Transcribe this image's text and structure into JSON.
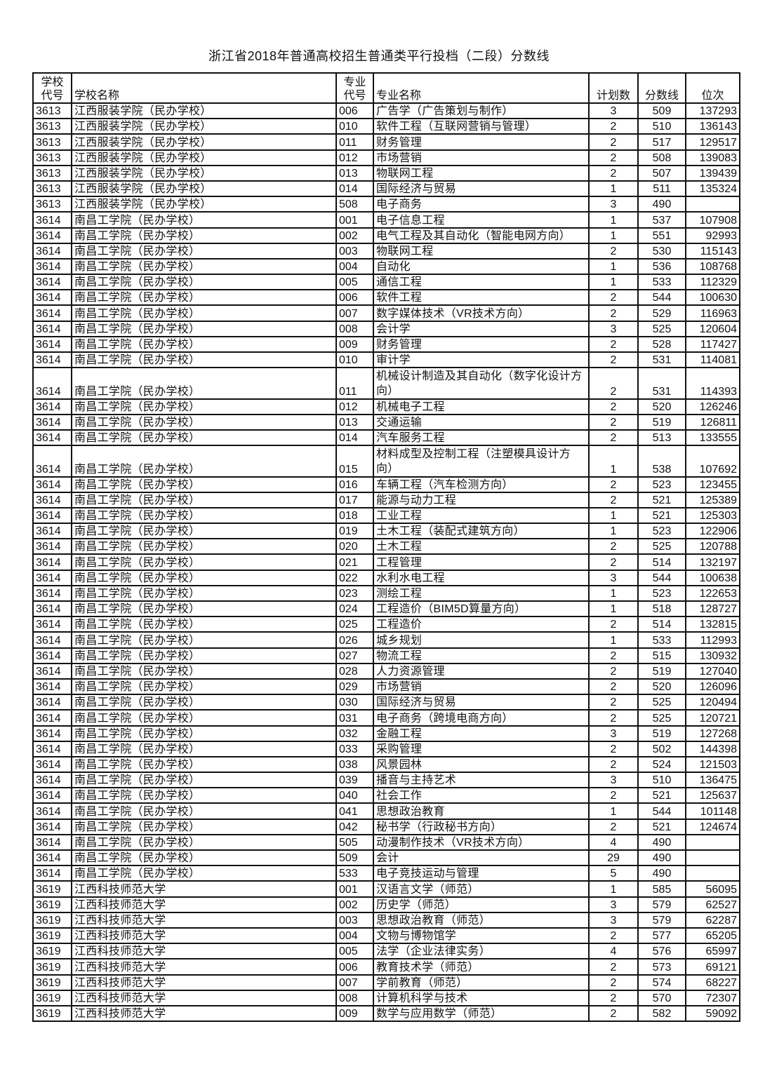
{
  "title": "浙江省2018年普通高校招生普通类平行投档（二段）分数线",
  "headers": {
    "school_code": [
      "学校",
      "代号"
    ],
    "school_name": "学校名称",
    "major_code": [
      "专业",
      "代号"
    ],
    "major_name": "专业名称",
    "plan": "计划数",
    "score": "分数线",
    "rank": "位次"
  },
  "rows": [
    [
      "3613",
      "江西服装学院（民办学校）",
      "006",
      "广告学（广告策划与制作）",
      "3",
      "509",
      "137293"
    ],
    [
      "3613",
      "江西服装学院（民办学校）",
      "010",
      "软件工程（互联网营销与管理）",
      "2",
      "510",
      "136143"
    ],
    [
      "3613",
      "江西服装学院（民办学校）",
      "011",
      "财务管理",
      "2",
      "517",
      "129517"
    ],
    [
      "3613",
      "江西服装学院（民办学校）",
      "012",
      "市场营销",
      "2",
      "508",
      "139083"
    ],
    [
      "3613",
      "江西服装学院（民办学校）",
      "013",
      "物联网工程",
      "2",
      "507",
      "139439"
    ],
    [
      "3613",
      "江西服装学院（民办学校）",
      "014",
      "国际经济与贸易",
      "1",
      "511",
      "135324"
    ],
    [
      "3613",
      "江西服装学院（民办学校）",
      "508",
      "电子商务",
      "3",
      "490",
      ""
    ],
    [
      "3614",
      "南昌工学院（民办学校）",
      "001",
      "电子信息工程",
      "1",
      "537",
      "107908"
    ],
    [
      "3614",
      "南昌工学院（民办学校）",
      "002",
      "电气工程及其自动化（智能电网方向）",
      "1",
      "551",
      "92993"
    ],
    [
      "3614",
      "南昌工学院（民办学校）",
      "003",
      "物联网工程",
      "2",
      "530",
      "115143"
    ],
    [
      "3614",
      "南昌工学院（民办学校）",
      "004",
      "自动化",
      "1",
      "536",
      "108768"
    ],
    [
      "3614",
      "南昌工学院（民办学校）",
      "005",
      "通信工程",
      "1",
      "533",
      "112329"
    ],
    [
      "3614",
      "南昌工学院（民办学校）",
      "006",
      "软件工程",
      "2",
      "544",
      "100630"
    ],
    [
      "3614",
      "南昌工学院（民办学校）",
      "007",
      "数字媒体技术（VR技术方向）",
      "2",
      "529",
      "116963"
    ],
    [
      "3614",
      "南昌工学院（民办学校）",
      "008",
      "会计学",
      "3",
      "525",
      "120604"
    ],
    [
      "3614",
      "南昌工学院（民办学校）",
      "009",
      "财务管理",
      "2",
      "528",
      "117427"
    ],
    [
      "3614",
      "南昌工学院（民办学校）",
      "010",
      "审计学",
      "2",
      "531",
      "114081"
    ],
    [
      "3614",
      "南昌工学院（民办学校）",
      "011",
      "机械设计制造及其自动化（数字化设计方向）",
      "2",
      "531",
      "114393"
    ],
    [
      "3614",
      "南昌工学院（民办学校）",
      "012",
      "机械电子工程",
      "2",
      "520",
      "126246"
    ],
    [
      "3614",
      "南昌工学院（民办学校）",
      "013",
      "交通运输",
      "2",
      "519",
      "126811"
    ],
    [
      "3614",
      "南昌工学院（民办学校）",
      "014",
      "汽车服务工程",
      "2",
      "513",
      "133555"
    ],
    [
      "3614",
      "南昌工学院（民办学校）",
      "015",
      "材料成型及控制工程（注塑模具设计方向）",
      "1",
      "538",
      "107692"
    ],
    [
      "3614",
      "南昌工学院（民办学校）",
      "016",
      "车辆工程（汽车检测方向）",
      "2",
      "523",
      "123455"
    ],
    [
      "3614",
      "南昌工学院（民办学校）",
      "017",
      "能源与动力工程",
      "2",
      "521",
      "125389"
    ],
    [
      "3614",
      "南昌工学院（民办学校）",
      "018",
      "工业工程",
      "1",
      "521",
      "125303"
    ],
    [
      "3614",
      "南昌工学院（民办学校）",
      "019",
      "土木工程（装配式建筑方向）",
      "1",
      "523",
      "122906"
    ],
    [
      "3614",
      "南昌工学院（民办学校）",
      "020",
      "土木工程",
      "2",
      "525",
      "120788"
    ],
    [
      "3614",
      "南昌工学院（民办学校）",
      "021",
      "工程管理",
      "2",
      "514",
      "132197"
    ],
    [
      "3614",
      "南昌工学院（民办学校）",
      "022",
      "水利水电工程",
      "3",
      "544",
      "100638"
    ],
    [
      "3614",
      "南昌工学院（民办学校）",
      "023",
      "测绘工程",
      "1",
      "523",
      "122653"
    ],
    [
      "3614",
      "南昌工学院（民办学校）",
      "024",
      "工程造价（BIM5D算量方向）",
      "1",
      "518",
      "128727"
    ],
    [
      "3614",
      "南昌工学院（民办学校）",
      "025",
      "工程造价",
      "2",
      "514",
      "132815"
    ],
    [
      "3614",
      "南昌工学院（民办学校）",
      "026",
      "城乡规划",
      "1",
      "533",
      "112993"
    ],
    [
      "3614",
      "南昌工学院（民办学校）",
      "027",
      "物流工程",
      "2",
      "515",
      "130932"
    ],
    [
      "3614",
      "南昌工学院（民办学校）",
      "028",
      "人力资源管理",
      "2",
      "519",
      "127040"
    ],
    [
      "3614",
      "南昌工学院（民办学校）",
      "029",
      "市场营销",
      "2",
      "520",
      "126096"
    ],
    [
      "3614",
      "南昌工学院（民办学校）",
      "030",
      "国际经济与贸易",
      "2",
      "525",
      "120494"
    ],
    [
      "3614",
      "南昌工学院（民办学校）",
      "031",
      "电子商务（跨境电商方向）",
      "2",
      "525",
      "120721"
    ],
    [
      "3614",
      "南昌工学院（民办学校）",
      "032",
      "金融工程",
      "3",
      "519",
      "127268"
    ],
    [
      "3614",
      "南昌工学院（民办学校）",
      "033",
      "采购管理",
      "2",
      "502",
      "144398"
    ],
    [
      "3614",
      "南昌工学院（民办学校）",
      "038",
      "风景园林",
      "2",
      "524",
      "121503"
    ],
    [
      "3614",
      "南昌工学院（民办学校）",
      "039",
      "播音与主持艺术",
      "3",
      "510",
      "136475"
    ],
    [
      "3614",
      "南昌工学院（民办学校）",
      "040",
      "社会工作",
      "2",
      "521",
      "125637"
    ],
    [
      "3614",
      "南昌工学院（民办学校）",
      "041",
      "思想政治教育",
      "1",
      "544",
      "101148"
    ],
    [
      "3614",
      "南昌工学院（民办学校）",
      "042",
      "秘书学（行政秘书方向）",
      "2",
      "521",
      "124674"
    ],
    [
      "3614",
      "南昌工学院（民办学校）",
      "505",
      "动漫制作技术（VR技术方向）",
      "4",
      "490",
      ""
    ],
    [
      "3614",
      "南昌工学院（民办学校）",
      "509",
      "会计",
      "29",
      "490",
      ""
    ],
    [
      "3614",
      "南昌工学院（民办学校）",
      "533",
      "电子竞技运动与管理",
      "5",
      "490",
      ""
    ],
    [
      "3619",
      "江西科技师范大学",
      "001",
      "汉语言文学（师范）",
      "1",
      "585",
      "56095"
    ],
    [
      "3619",
      "江西科技师范大学",
      "002",
      "历史学（师范）",
      "3",
      "579",
      "62527"
    ],
    [
      "3619",
      "江西科技师范大学",
      "003",
      "思想政治教育（师范）",
      "3",
      "579",
      "62287"
    ],
    [
      "3619",
      "江西科技师范大学",
      "004",
      "文物与博物馆学",
      "2",
      "577",
      "65205"
    ],
    [
      "3619",
      "江西科技师范大学",
      "005",
      "法学（企业法律实务）",
      "4",
      "576",
      "65997"
    ],
    [
      "3619",
      "江西科技师范大学",
      "006",
      "教育技术学（师范）",
      "2",
      "573",
      "69121"
    ],
    [
      "3619",
      "江西科技师范大学",
      "007",
      "学前教育（师范）",
      "2",
      "574",
      "68227"
    ],
    [
      "3619",
      "江西科技师范大学",
      "008",
      "计算机科学与技术",
      "2",
      "570",
      "72307"
    ],
    [
      "3619",
      "江西科技师范大学",
      "009",
      "数学与应用数学（师范）",
      "2",
      "582",
      "59092"
    ]
  ]
}
